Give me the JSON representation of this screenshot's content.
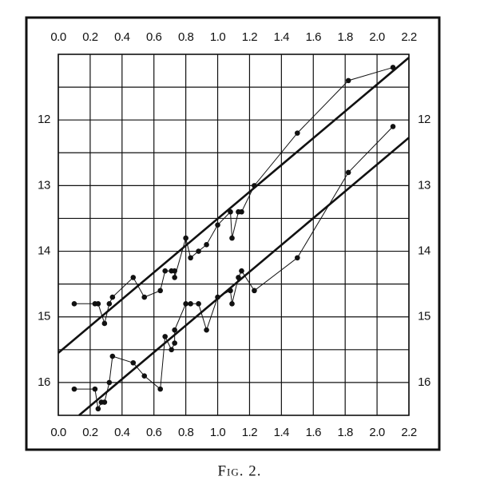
{
  "chart_data": {
    "type": "line",
    "caption": "Fig. 2.",
    "xlim": [
      0,
      2.2
    ],
    "xticks": [
      {
        "value": 0,
        "label": "0.0"
      },
      0.2,
      0.4,
      0.6,
      0.8,
      {
        "value": 1,
        "label": "1.0"
      },
      1.2,
      1.4,
      1.6,
      1.8,
      {
        "value": 2,
        "label": "2.0"
      },
      2.2
    ],
    "ylim": [
      16.5,
      11.0
    ],
    "yticks": [
      12,
      13,
      14,
      15,
      16
    ],
    "ygrid": [
      11.5,
      12,
      12.5,
      13,
      13.5,
      14,
      14.5,
      15,
      15.5,
      16
    ],
    "grid": true,
    "color": "#111111",
    "series": [
      {
        "x": [
          0.1,
          0.23,
          0.25,
          0.29,
          0.32,
          0.34,
          0.47,
          0.54,
          0.64,
          0.67,
          0.71,
          0.73,
          0.73,
          0.8,
          0.83,
          0.88,
          0.93,
          1.0,
          1.08,
          1.09,
          1.13,
          1.15,
          1.23,
          1.5,
          1.82,
          2.1
        ],
        "values": [
          14.8,
          14.8,
          14.8,
          15.1,
          14.8,
          14.7,
          14.4,
          14.7,
          14.6,
          14.3,
          14.3,
          14.3,
          14.4,
          13.8,
          14.1,
          14.0,
          13.9,
          13.6,
          13.4,
          13.8,
          13.4,
          13.4,
          13.0,
          12.2,
          11.4,
          11.2
        ]
      },
      {
        "x": [
          0.1,
          0.23,
          0.25,
          0.27,
          0.29,
          0.32,
          0.34,
          0.47,
          0.54,
          0.64,
          0.67,
          0.71,
          0.73,
          0.73,
          0.8,
          0.83,
          0.88,
          0.93,
          1.0,
          1.08,
          1.09,
          1.13,
          1.15,
          1.23,
          1.5,
          1.82,
          2.1
        ],
        "values": [
          16.1,
          16.1,
          16.4,
          16.3,
          16.3,
          16.0,
          15.6,
          15.7,
          15.9,
          16.1,
          15.3,
          15.5,
          15.4,
          15.2,
          14.8,
          14.8,
          14.8,
          15.2,
          14.7,
          14.6,
          14.8,
          14.4,
          14.3,
          14.6,
          14.1,
          12.8,
          12.1
        ]
      }
    ],
    "fit_lines": [
      {
        "x": [
          0,
          2.2
        ],
        "values": [
          15.55,
          11.05
        ]
      },
      {
        "x": [
          0.13,
          2.2
        ],
        "values": [
          16.5,
          12.27
        ]
      }
    ]
  }
}
